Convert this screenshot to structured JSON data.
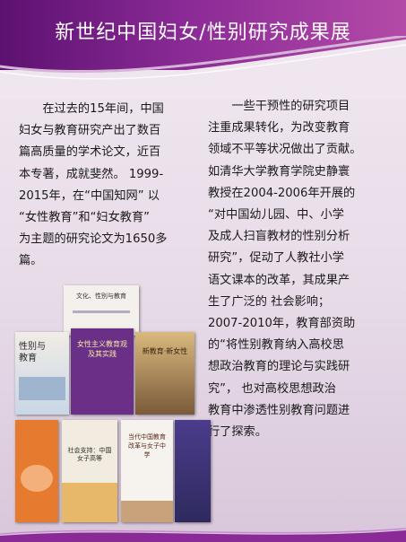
{
  "title": "新世纪中国妇女/性别研究成果展",
  "left_paragraph": [
    "　　在过去的15年间，中国",
    "妇女与教育研究产出了数百",
    "篇高质量的学术论文，近百",
    "本专著，成就斐然。 1999-",
    "2015年，在“中国知网” 以",
    "“女性教育”和“妇女教育”",
    "为主题的研究论文为1650多",
    "篇。"
  ],
  "right_paragraph": [
    "　　一些干预性的研究项目",
    "注重成果转化，为改变教育",
    "领域不平等状况做出了贡献。",
    "如清华大学教育学院史静寰",
    "教授在2004-2006年开展的",
    "“对中国幼儿园、中、小学",
    "及成人扫盲教材的性别分析",
    "研究”，促动了人教社小学",
    "语文课本的改革，其成果产",
    "生了广泛的 社会影响；",
    "2007-2010年，教育部资助",
    "的“将性别教育纳入高校思",
    "想政治教育的理论与实践研",
    "究”， 也对高校思想政治",
    "教育中渗透性别教育问题进",
    "行了探索。"
  ],
  "books": [
    {
      "title": "文化、性别与教育"
    },
    {
      "title": "性别与教育"
    },
    {
      "title": "女性主义教育观及其实践"
    },
    {
      "title": "新教育·新女性"
    },
    {
      "title": "社会支持：中国女子高等"
    },
    {
      "title": "当代中国教育改革与女子中学"
    }
  ],
  "colors": {
    "header": "#7a1f8c",
    "title_text": "#ffffff",
    "body_text": "#1a1a1a"
  }
}
